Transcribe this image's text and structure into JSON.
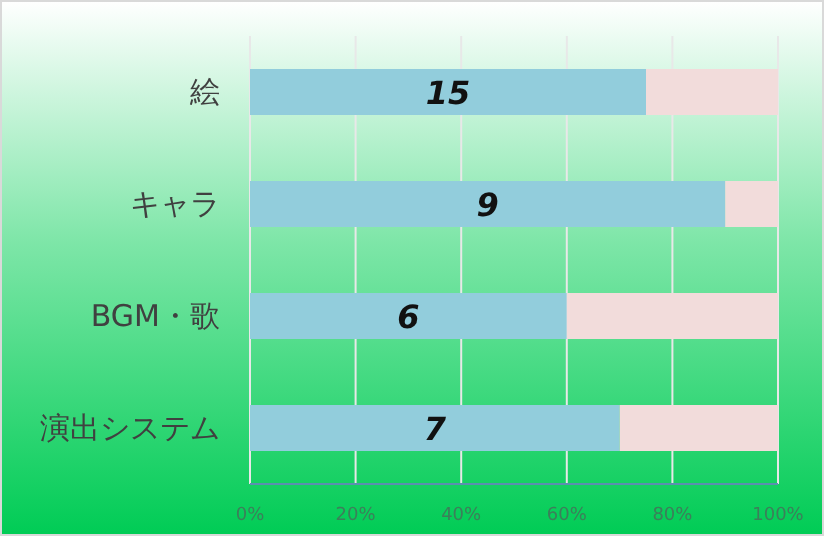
{
  "chart_data": {
    "type": "bar",
    "orientation": "horizontal",
    "stacked": true,
    "categories": [
      "絵",
      "キャラ",
      "BGM・歌",
      "演出システム"
    ],
    "series": [
      {
        "color": "#92cddc",
        "values": [
          75,
          90,
          60,
          70
        ]
      },
      {
        "color": "#f2dcdb",
        "values": [
          25,
          10,
          40,
          30
        ]
      }
    ],
    "xlim": [
      0,
      100
    ],
    "xticks": [
      {
        "value": 0,
        "label": "0%"
      },
      {
        "value": 20,
        "label": "20%"
      },
      {
        "value": 40,
        "label": "40%"
      },
      {
        "value": 60,
        "label": "60%"
      },
      {
        "value": 80,
        "label": "80%"
      },
      {
        "value": 100,
        "label": "100%"
      }
    ],
    "annotations": [
      "15",
      "9",
      "6",
      "7"
    ],
    "grid": "x"
  }
}
